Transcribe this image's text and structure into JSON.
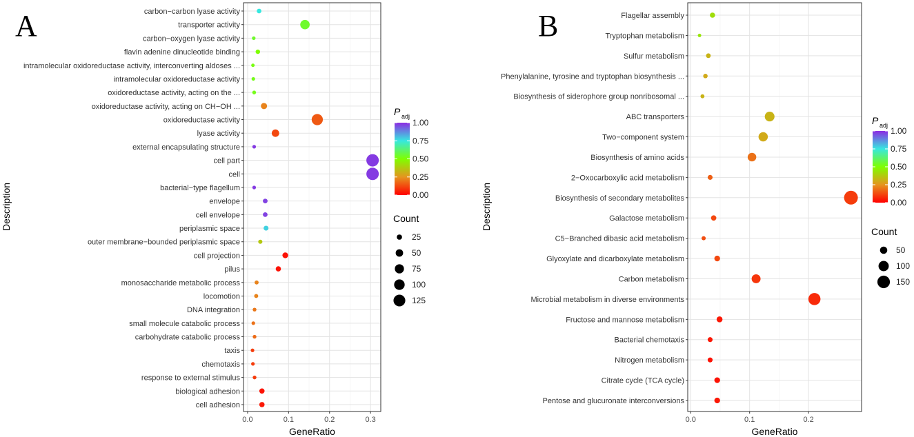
{
  "figure": {
    "labels": [
      "A",
      "B"
    ]
  },
  "colorscale": {
    "stops": [
      "#ff0000",
      "#e5951f",
      "#7fff00",
      "#36e8e0",
      "#8b2be2"
    ]
  },
  "chart_data": [
    {
      "type": "scatter",
      "panel": "A",
      "xlabel": "GeneRatio",
      "ylabel": "Description",
      "xlim": [
        -0.01,
        0.325
      ],
      "xticks": [
        0.0,
        0.1,
        0.2,
        0.3
      ],
      "xtick_labels": [
        "0.0",
        "0.1",
        "0.2",
        "0.3"
      ],
      "grid": true,
      "categories": [
        "carbon−carbon lyase activity",
        "transporter activity",
        "carbon−oxygen lyase activity",
        "flavin adenine dinucleotide binding",
        "intramolecular oxidoreductase activity, interconverting aldoses ...",
        "intramolecular oxidoreductase activity",
        "oxidoreductase activity, acting on the ...",
        "oxidoreductase activity, acting on CH−OH ...",
        "oxidoreductase activity",
        "lyase activity",
        "external encapsulating structure",
        "cell part",
        "cell",
        "bacterial−type flagellum",
        "envelope",
        "cell envelope",
        "periplasmic space",
        "outer membrane−bounded periplasmic space",
        "cell projection",
        "pilus",
        "monosaccharide metabolic process",
        "locomotion",
        "DNA integration",
        "small molecule catabolic process",
        "carbohydrate catabolic process",
        "taxis",
        "chemotaxis",
        "response to external stimulus",
        "biological adhesion",
        "cell adhesion"
      ],
      "gene_ratio": [
        0.028,
        0.14,
        0.015,
        0.025,
        0.013,
        0.014,
        0.016,
        0.04,
        0.17,
        0.068,
        0.016,
        0.305,
        0.305,
        0.016,
        0.043,
        0.043,
        0.045,
        0.031,
        0.092,
        0.075,
        0.022,
        0.021,
        0.017,
        0.014,
        0.017,
        0.012,
        0.013,
        0.017,
        0.035,
        0.035
      ],
      "count": [
        20,
        80,
        12,
        18,
        11,
        12,
        13,
        35,
        112,
        50,
        12,
        138,
        138,
        12,
        20,
        20,
        22,
        16,
        30,
        25,
        15,
        15,
        13,
        12,
        13,
        12,
        12,
        13,
        25,
        25
      ],
      "p_adj": [
        0.75,
        0.55,
        0.55,
        0.5,
        0.52,
        0.53,
        0.53,
        0.22,
        0.15,
        0.12,
        0.98,
        0.98,
        0.98,
        0.98,
        0.97,
        0.97,
        0.78,
        0.37,
        0.03,
        0.03,
        0.22,
        0.22,
        0.2,
        0.19,
        0.18,
        0.1,
        0.1,
        0.1,
        0.03,
        0.04
      ],
      "legend": {
        "color_title": "P",
        "color_sub": "adj",
        "color_ticks": [
          "1.00",
          "0.75",
          "0.50",
          "0.25",
          "0.00"
        ],
        "color_values": [
          1.0,
          0.75,
          0.5,
          0.25,
          0.0
        ],
        "size_title": "Count",
        "size_labels": [
          "25",
          "50",
          "75",
          "100",
          "125"
        ],
        "size_values": [
          25,
          50,
          75,
          100,
          125
        ]
      }
    },
    {
      "type": "scatter",
      "panel": "B",
      "xlabel": "GeneRatio",
      "ylabel": "Description",
      "xlim": [
        -0.005,
        0.29
      ],
      "xticks": [
        0.0,
        0.1,
        0.2
      ],
      "xtick_labels": [
        "0.0",
        "0.1",
        "0.2"
      ],
      "grid": true,
      "categories": [
        "Flagellar assembly",
        "Tryptophan metabolism",
        "Sulfur metabolism",
        "Phenylalanine, tyrosine and tryptophan biosynthesis ...",
        "Biosynthesis of siderophore group nonribosomal ...",
        "ABC transporters",
        "Two−component system",
        "Biosynthesis of amino acids",
        "2−Oxocarboxylic acid metabolism",
        "Biosynthesis of secondary metabolites",
        "Galactose metabolism",
        "C5−Branched dibasic acid metabolism",
        "Glyoxylate and dicarboxylate metabolism",
        "Carbon metabolism",
        "Microbial metabolism in diverse environments",
        "Fructose and mannose metabolism",
        "Bacterial chemotaxis",
        "Nitrogen metabolism",
        "Citrate cycle (TCA cycle)",
        "Pentose and glucuronate interconversions"
      ],
      "gene_ratio": [
        0.037,
        0.015,
        0.03,
        0.025,
        0.02,
        0.134,
        0.123,
        0.104,
        0.033,
        0.272,
        0.039,
        0.022,
        0.045,
        0.111,
        0.21,
        0.049,
        0.033,
        0.033,
        0.045,
        0.045
      ],
      "count": [
        25,
        10,
        20,
        18,
        14,
        90,
        82,
        70,
        22,
        182,
        26,
        15,
        30,
        75,
        140,
        32,
        22,
        22,
        30,
        30
      ],
      "p_adj": [
        0.42,
        0.44,
        0.32,
        0.3,
        0.32,
        0.32,
        0.3,
        0.19,
        0.16,
        0.1,
        0.12,
        0.13,
        0.12,
        0.09,
        0.07,
        0.04,
        0.04,
        0.03,
        0.03,
        0.04
      ],
      "legend": {
        "color_title": "P",
        "color_sub": "adj",
        "color_ticks": [
          "1.00",
          "0.75",
          "0.50",
          "0.25",
          "0.00"
        ],
        "color_values": [
          1.0,
          0.75,
          0.5,
          0.25,
          0.0
        ],
        "size_title": "Count",
        "size_labels": [
          "50",
          "100",
          "150"
        ],
        "size_values": [
          50,
          100,
          150
        ]
      }
    }
  ]
}
